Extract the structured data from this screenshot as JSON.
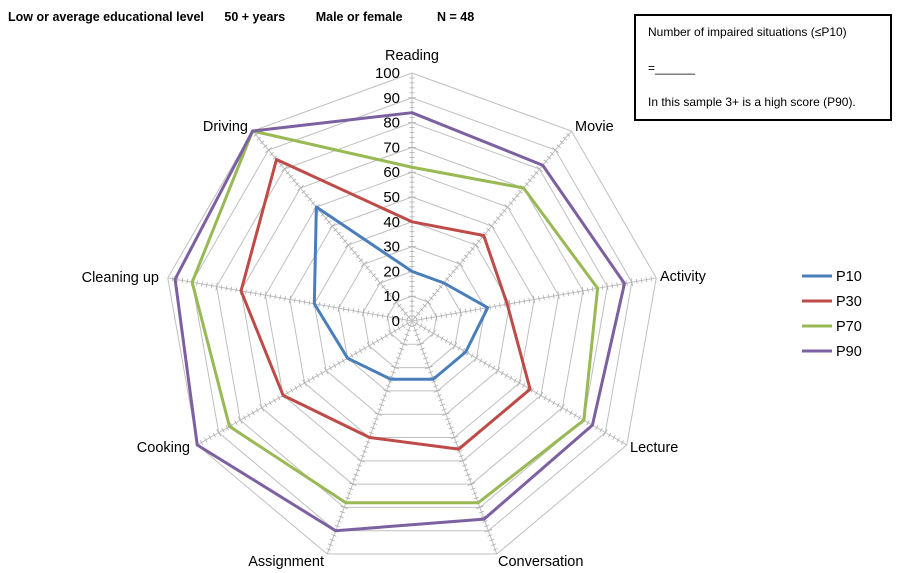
{
  "header": {
    "education": "Low or average educational level",
    "age": "50 + years",
    "sex": "Male or female",
    "n": "N = 48"
  },
  "info_box": {
    "line1": "Number of impaired situations (≤P10)",
    "line2": "=______",
    "line3": "In this sample 3+ is a high score (P90)."
  },
  "chart_data": {
    "type": "radar",
    "categories": [
      "Reading",
      "Movie",
      "Activity",
      "Lecture",
      "Conversation",
      "Assignment",
      "Cooking",
      "Cleaning up",
      "Driving"
    ],
    "rlim": [
      0,
      100
    ],
    "ticks": [
      0,
      10,
      20,
      30,
      40,
      50,
      60,
      70,
      80,
      90,
      100
    ],
    "grid": true,
    "legend_position": "right",
    "series": [
      {
        "name": "P10",
        "color": "#4a7ebb",
        "values": [
          20,
          20,
          31,
          25,
          25,
          25,
          30,
          40,
          60
        ]
      },
      {
        "name": "P30",
        "color": "#be4b48",
        "values": [
          40,
          45,
          39,
          55,
          55,
          50,
          60,
          70,
          85
        ]
      },
      {
        "name": "P70",
        "color": "#98b954",
        "values": [
          62,
          70,
          76,
          80,
          78,
          78,
          85,
          90,
          100
        ]
      },
      {
        "name": "P90",
        "color": "#7d60a0",
        "values": [
          84,
          82,
          87,
          84,
          85,
          90,
          100,
          97,
          100
        ]
      }
    ]
  }
}
